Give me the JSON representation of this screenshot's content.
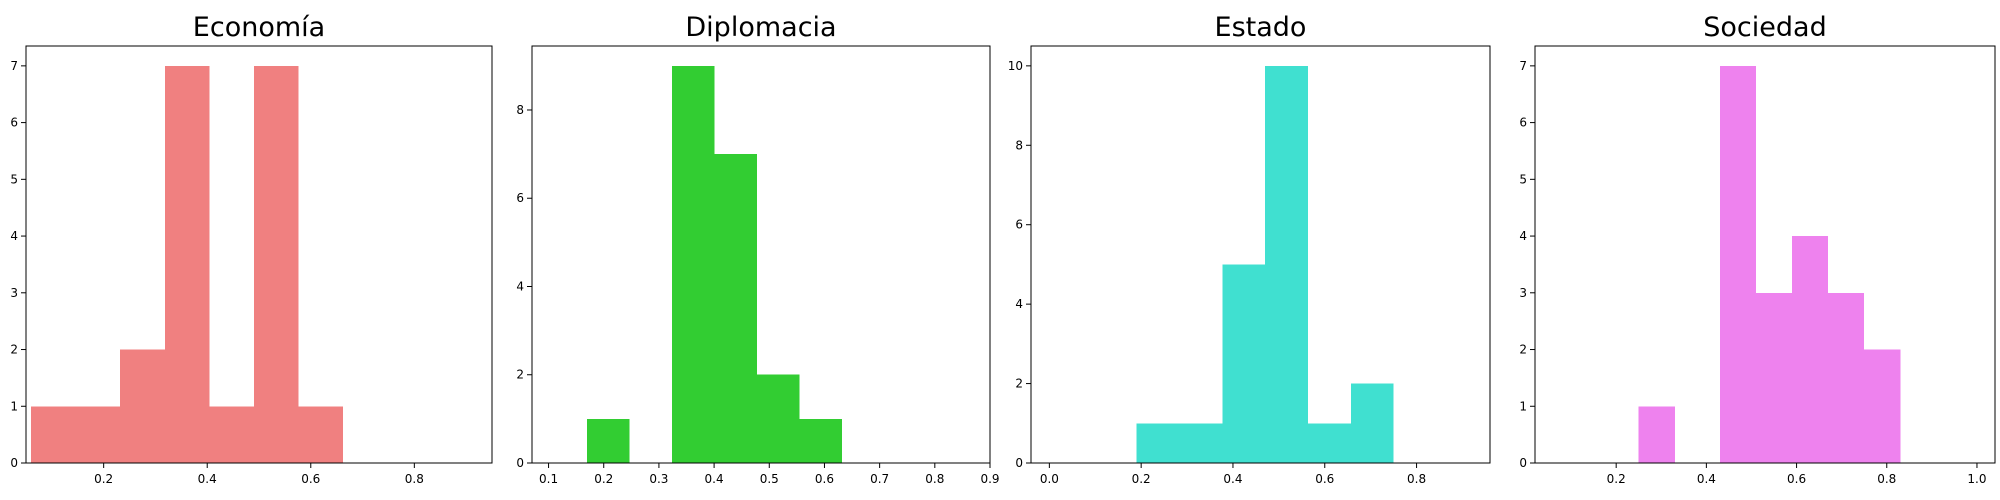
{
  "chart_data": [
    {
      "type": "histogram",
      "title": "Economía",
      "color": "#f08080",
      "xlim": [
        0.05,
        0.95
      ],
      "ylim": [
        0,
        7.35
      ],
      "xticks": [
        0.2,
        0.4,
        0.6,
        0.8
      ],
      "yticks": [
        0,
        1,
        2,
        3,
        4,
        5,
        6,
        7
      ],
      "bins": [
        {
          "x0": 0.06,
          "x1": 0.146,
          "count": 1
        },
        {
          "x0": 0.146,
          "x1": 0.232,
          "count": 1
        },
        {
          "x0": 0.232,
          "x1": 0.318,
          "count": 2
        },
        {
          "x0": 0.318,
          "x1": 0.404,
          "count": 7
        },
        {
          "x0": 0.404,
          "x1": 0.49,
          "count": 1
        },
        {
          "x0": 0.49,
          "x1": 0.576,
          "count": 7
        },
        {
          "x0": 0.576,
          "x1": 0.662,
          "count": 1
        }
      ]
    },
    {
      "type": "histogram",
      "title": "Diplomacia",
      "color": "#32cd32",
      "xlim": [
        0.07,
        0.9
      ],
      "ylim": [
        0,
        9.45
      ],
      "xticks": [
        0.1,
        0.2,
        0.3,
        0.4,
        0.5,
        0.6,
        0.7,
        0.8,
        0.9
      ],
      "yticks": [
        0,
        2,
        4,
        6,
        8
      ],
      "bins": [
        {
          "x0": 0.17,
          "x1": 0.247,
          "count": 1
        },
        {
          "x0": 0.324,
          "x1": 0.401,
          "count": 9
        },
        {
          "x0": 0.401,
          "x1": 0.478,
          "count": 7
        },
        {
          "x0": 0.478,
          "x1": 0.555,
          "count": 2
        },
        {
          "x0": 0.555,
          "x1": 0.632,
          "count": 1
        }
      ]
    },
    {
      "type": "histogram",
      "title": "Estado",
      "color": "#40e0d0",
      "xlim": [
        -0.04,
        0.96
      ],
      "ylim": [
        0,
        10.5
      ],
      "xticks": [
        0.0,
        0.2,
        0.4,
        0.6,
        0.8
      ],
      "yticks": [
        0,
        2,
        4,
        6,
        8,
        10
      ],
      "bins": [
        {
          "x0": 0.19,
          "x1": 0.2833,
          "count": 1
        },
        {
          "x0": 0.2833,
          "x1": 0.3767,
          "count": 1
        },
        {
          "x0": 0.3767,
          "x1": 0.47,
          "count": 5
        },
        {
          "x0": 0.47,
          "x1": 0.5633,
          "count": 10
        },
        {
          "x0": 0.5633,
          "x1": 0.6567,
          "count": 1
        },
        {
          "x0": 0.6567,
          "x1": 0.75,
          "count": 2
        }
      ]
    },
    {
      "type": "histogram",
      "title": "Sociedad",
      "color": "#ee82ee",
      "xlim": [
        0.02,
        1.04
      ],
      "ylim": [
        0,
        7.35
      ],
      "xticks": [
        0.2,
        0.4,
        0.6,
        0.8,
        1.0
      ],
      "yticks": [
        0,
        1,
        2,
        3,
        4,
        5,
        6,
        7
      ],
      "bins": [
        {
          "x0": 0.25,
          "x1": 0.33,
          "count": 1
        },
        {
          "x0": 0.43,
          "x1": 0.51,
          "count": 7
        },
        {
          "x0": 0.51,
          "x1": 0.59,
          "count": 3
        },
        {
          "x0": 0.59,
          "x1": 0.67,
          "count": 4
        },
        {
          "x0": 0.67,
          "x1": 0.75,
          "count": 3
        },
        {
          "x0": 0.75,
          "x1": 0.83,
          "count": 2
        }
      ]
    }
  ]
}
